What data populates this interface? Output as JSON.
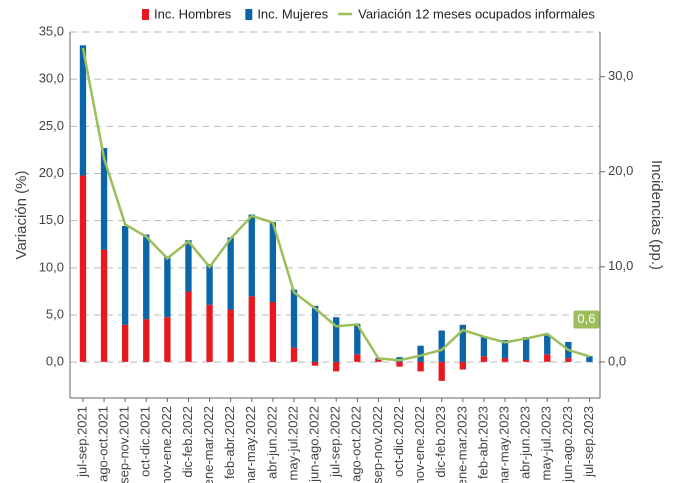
{
  "chart_data": {
    "type": "bar-line",
    "categories": [
      "jul-sep.2021",
      "ago-oct.2021",
      "sep-nov.2021",
      "oct-dic.2021",
      "nov-ene.2022",
      "dic-feb.2022",
      "ene-mar.2022",
      "feb-abr.2022",
      "mar-may.2022",
      "abr-jun.2022",
      "may-jul.2022",
      "jun-ago.2022",
      "jul-sep.2022",
      "ago-oct.2022",
      "sep-nov.2022",
      "oct-dic.2022",
      "nov-ene.2022",
      "dic-feb.2023",
      "ene-mar.2023",
      "feb-abr.2023",
      "mar-may.2023",
      "abr-jun.2023",
      "may-jul.2023",
      "jun-ago.2023",
      "jul-sep.2023"
    ],
    "series": [
      {
        "name": "Inc. Hombres",
        "color": "#e8191e",
        "type": "bar",
        "axis": "y2",
        "values": [
          19.6,
          11.8,
          3.9,
          4.5,
          4.7,
          7.4,
          6.0,
          5.5,
          6.9,
          6.3,
          1.5,
          -0.4,
          -1.0,
          0.8,
          0.3,
          -0.5,
          -1.0,
          -2.0,
          -0.8,
          0.6,
          0.4,
          0.2,
          0.8,
          0.4,
          0.0
        ]
      },
      {
        "name": "Inc. Mujeres",
        "color": "#0a66a8",
        "type": "bar",
        "axis": "y2",
        "values": [
          13.7,
          10.7,
          10.4,
          8.9,
          6.4,
          5.4,
          4.3,
          7.6,
          8.6,
          8.4,
          6.1,
          5.9,
          4.7,
          3.2,
          0.1,
          0.5,
          1.7,
          3.3,
          3.9,
          2.1,
          1.9,
          2.4,
          2.0,
          1.7,
          0.6
        ]
      },
      {
        "name": "Variación 12 meses ocupados informales",
        "color": "#9dbf5b",
        "type": "line",
        "axis": "y",
        "values": [
          33.3,
          21.6,
          14.6,
          13.3,
          11.0,
          12.8,
          10.1,
          13.1,
          15.5,
          14.8,
          7.4,
          5.7,
          3.8,
          4.0,
          0.4,
          0.2,
          0.7,
          1.3,
          3.4,
          2.7,
          2.1,
          2.5,
          3.0,
          1.3,
          0.6
        ],
        "value_labels": [
          null,
          null,
          null,
          null,
          null,
          null,
          null,
          null,
          null,
          null,
          null,
          null,
          null,
          null,
          null,
          null,
          null,
          null,
          null,
          null,
          null,
          null,
          null,
          null,
          "0,6"
        ]
      }
    ],
    "ylabel": "Variación (%)",
    "y2label": "Incidencias (pp.)",
    "ylim": [
      -3.8,
      35
    ],
    "yticks": [
      {
        "value": 0,
        "label": "0,0"
      },
      {
        "value": 5,
        "label": "5,0"
      },
      {
        "value": 10,
        "label": "10,0"
      },
      {
        "value": 15,
        "label": "15,0"
      },
      {
        "value": 20,
        "label": "20,0"
      },
      {
        "value": 25,
        "label": "25,0"
      },
      {
        "value": 30,
        "label": "30,0"
      },
      {
        "value": 35,
        "label": "35,0"
      }
    ],
    "y2lim": [
      -3.8,
      34.7
    ],
    "y2ticks": [
      {
        "value": 0,
        "label": "0,0"
      },
      {
        "value": 10,
        "label": "10,0"
      },
      {
        "value": 20,
        "label": "20,0"
      },
      {
        "value": 30,
        "label": "30,0"
      }
    ],
    "grid": true,
    "legend": "top"
  }
}
